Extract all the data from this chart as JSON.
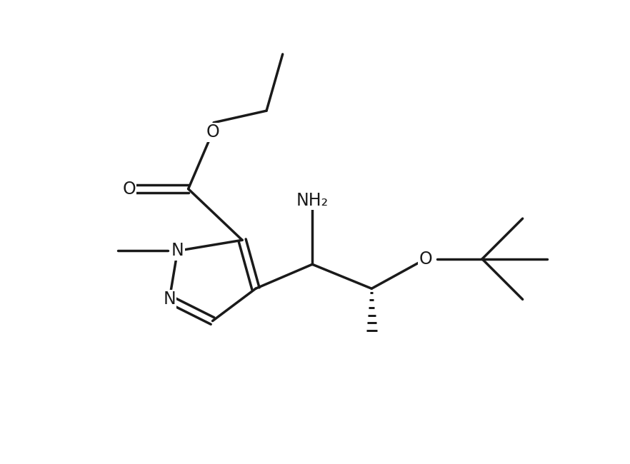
{
  "background_color": "#ffffff",
  "line_color": "#1a1a1a",
  "line_width": 2.5,
  "font_size": 17,
  "figsize": [
    8.82,
    6.5
  ],
  "dpi": 100,
  "xlim": [
    0,
    10
  ],
  "ylim": [
    0,
    8.5
  ]
}
